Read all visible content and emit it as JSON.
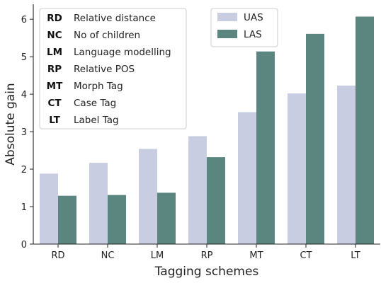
{
  "chart_data": {
    "type": "bar",
    "xlabel": "Tagging schemes",
    "ylabel": "Absolute gain",
    "ylim": [
      0,
      6.4
    ],
    "yticks": [
      0,
      1,
      2,
      3,
      4,
      5,
      6
    ],
    "grid": false,
    "categories": [
      "RD",
      "NC",
      "LM",
      "RP",
      "MT",
      "CT",
      "LT"
    ],
    "series": [
      {
        "name": "UAS",
        "color": "#c8cde2",
        "values": [
          1.88,
          2.17,
          2.54,
          2.88,
          3.52,
          4.02,
          4.23
        ]
      },
      {
        "name": "LAS",
        "color": "#5b867f",
        "values": [
          1.29,
          1.31,
          1.37,
          2.32,
          5.14,
          5.61,
          6.07
        ]
      }
    ],
    "series_legend_position": "top-center",
    "abbreviation_legend_position": "top-left",
    "abbreviation_legend": [
      {
        "abbr": "RD",
        "label": "Relative distance"
      },
      {
        "abbr": "NC",
        "label": "No of children"
      },
      {
        "abbr": "LM",
        "label": "Language modelling"
      },
      {
        "abbr": "RP",
        "label": "Relative POS"
      },
      {
        "abbr": "MT",
        "label": "Morph Tag"
      },
      {
        "abbr": "CT",
        "label": "Case Tag"
      },
      {
        "abbr": "LT",
        "label": "Label Tag"
      }
    ]
  }
}
